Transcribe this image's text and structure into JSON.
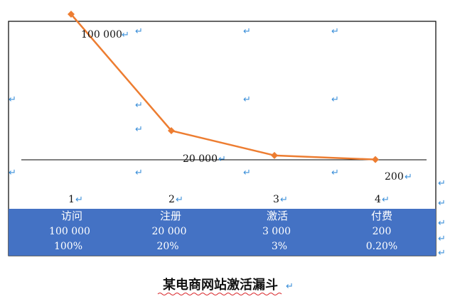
{
  "chart_data": {
    "type": "line",
    "title": "某电商网站激活漏斗",
    "categories": [
      "1",
      "2",
      "3",
      "4"
    ],
    "series": [
      {
        "values": [
          100000,
          20000,
          3000,
          200
        ]
      }
    ],
    "data_labels": [
      "100 000",
      "20 000",
      "",
      "200"
    ],
    "ylim": [
      0,
      100000
    ],
    "grid": false,
    "line_color": "#ed7d31",
    "baseline_color": "#000000",
    "table": {
      "header_color": "#4472c4",
      "stages": [
        "访问",
        "注册",
        "激活",
        "付费"
      ],
      "counts": [
        "100 000",
        "20 000",
        "3 000",
        "200"
      ],
      "rates": [
        "100%",
        "20%",
        "3%",
        "0.20%"
      ]
    }
  }
}
